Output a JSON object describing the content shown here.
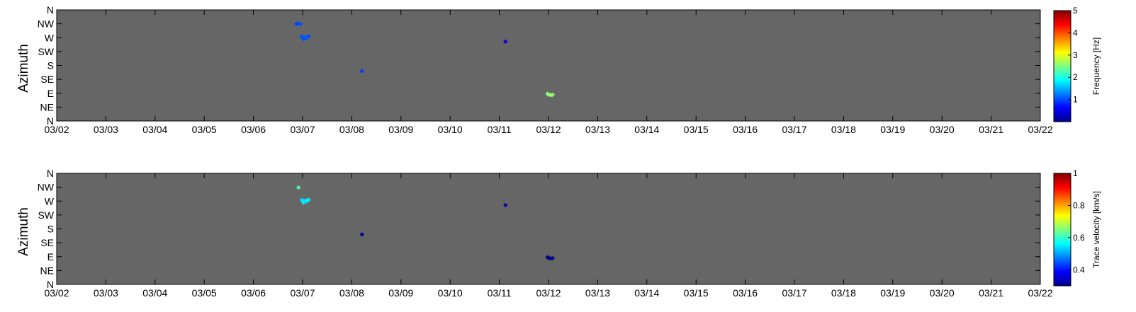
{
  "chart_data": [
    {
      "type": "scatter",
      "panel": "top",
      "ylabel": "Azimuth",
      "x_ticks": [
        "03/02",
        "03/03",
        "03/04",
        "03/05",
        "03/06",
        "03/07",
        "03/08",
        "03/09",
        "03/10",
        "03/11",
        "03/12",
        "03/13",
        "03/14",
        "03/15",
        "03/16",
        "03/17",
        "03/18",
        "03/19",
        "03/20",
        "03/21",
        "03/22"
      ],
      "y_ticks": [
        "N",
        "NW",
        "W",
        "SW",
        "S",
        "SE",
        "E",
        "NE",
        "N"
      ],
      "xlim": [
        "03/02",
        "03/22"
      ],
      "ylim_deg": [
        0,
        360
      ],
      "y_reversed": true,
      "background": "#666666",
      "marker": "*",
      "colorbar": {
        "title": "Frequency [Hz]",
        "range": [
          0,
          5
        ],
        "tick_values": [
          1,
          2,
          3,
          4,
          5
        ],
        "tick_labels": [
          "1",
          "2",
          "3",
          "4",
          "5"
        ],
        "colormap": "jet"
      },
      "points": [
        {
          "date": "03/06 21:00",
          "azimuth": 315,
          "value": 0.9
        },
        {
          "date": "03/06 22:00",
          "azimuth": 315,
          "value": 1.0
        },
        {
          "date": "03/06 23:00",
          "azimuth": 314,
          "value": 1.0
        },
        {
          "date": "03/06 23:30",
          "azimuth": 274,
          "value": 1.0
        },
        {
          "date": "03/07 00:00",
          "azimuth": 272,
          "value": 1.1
        },
        {
          "date": "03/07 00:30",
          "azimuth": 266,
          "value": 1.0
        },
        {
          "date": "03/07 01:00",
          "azimuth": 270,
          "value": 1.0
        },
        {
          "date": "03/07 01:30",
          "azimuth": 268,
          "value": 1.0
        },
        {
          "date": "03/07 02:00",
          "azimuth": 272,
          "value": 1.1
        },
        {
          "date": "03/07 03:00",
          "azimuth": 274,
          "value": 1.0
        },
        {
          "date": "03/08 05:00",
          "azimuth": 162,
          "value": 0.9
        },
        {
          "date": "03/11 03:00",
          "azimuth": 257,
          "value": 0.4
        },
        {
          "date": "03/11 23:30",
          "azimuth": 88,
          "value": 2.6
        },
        {
          "date": "03/12 00:00",
          "azimuth": 86,
          "value": 2.5
        },
        {
          "date": "03/12 01:00",
          "azimuth": 84,
          "value": 2.7
        },
        {
          "date": "03/12 02:00",
          "azimuth": 85,
          "value": 2.6
        }
      ]
    },
    {
      "type": "scatter",
      "panel": "bottom",
      "ylabel": "Azimuth",
      "x_ticks": [
        "03/02",
        "03/03",
        "03/04",
        "03/05",
        "03/06",
        "03/07",
        "03/08",
        "03/09",
        "03/10",
        "03/11",
        "03/12",
        "03/13",
        "03/14",
        "03/15",
        "03/16",
        "03/17",
        "03/18",
        "03/19",
        "03/20",
        "03/21",
        "03/22"
      ],
      "y_ticks": [
        "N",
        "NW",
        "W",
        "SW",
        "S",
        "SE",
        "E",
        "NE",
        "N"
      ],
      "xlim": [
        "03/02",
        "03/22"
      ],
      "ylim_deg": [
        0,
        360
      ],
      "y_reversed": true,
      "background": "#666666",
      "marker": "*",
      "colorbar": {
        "title": "Trace velocity [km/s]",
        "range": [
          0.3,
          1.0
        ],
        "tick_values": [
          0.4,
          0.6,
          0.8,
          1.0
        ],
        "tick_labels": [
          "0.4",
          "0.6",
          "0.8",
          "1"
        ],
        "colormap": "jet"
      },
      "points": [
        {
          "date": "03/06 22:00",
          "azimuth": 314,
          "value": 0.62
        },
        {
          "date": "03/06 23:30",
          "azimuth": 274,
          "value": 0.52
        },
        {
          "date": "03/07 00:00",
          "azimuth": 272,
          "value": 0.55
        },
        {
          "date": "03/07 00:30",
          "azimuth": 266,
          "value": 0.57
        },
        {
          "date": "03/07 01:00",
          "azimuth": 270,
          "value": 0.54
        },
        {
          "date": "03/07 01:30",
          "azimuth": 268,
          "value": 0.53
        },
        {
          "date": "03/07 02:00",
          "azimuth": 272,
          "value": 0.56
        },
        {
          "date": "03/07 03:00",
          "azimuth": 274,
          "value": 0.55
        },
        {
          "date": "03/08 05:00",
          "azimuth": 162,
          "value": 0.32
        },
        {
          "date": "03/11 03:00",
          "azimuth": 257,
          "value": 0.32
        },
        {
          "date": "03/11 23:30",
          "azimuth": 88,
          "value": 0.3
        },
        {
          "date": "03/12 00:00",
          "azimuth": 86,
          "value": 0.3
        },
        {
          "date": "03/12 01:00",
          "azimuth": 84,
          "value": 0.31
        },
        {
          "date": "03/12 02:00",
          "azimuth": 85,
          "value": 0.3
        }
      ]
    }
  ]
}
